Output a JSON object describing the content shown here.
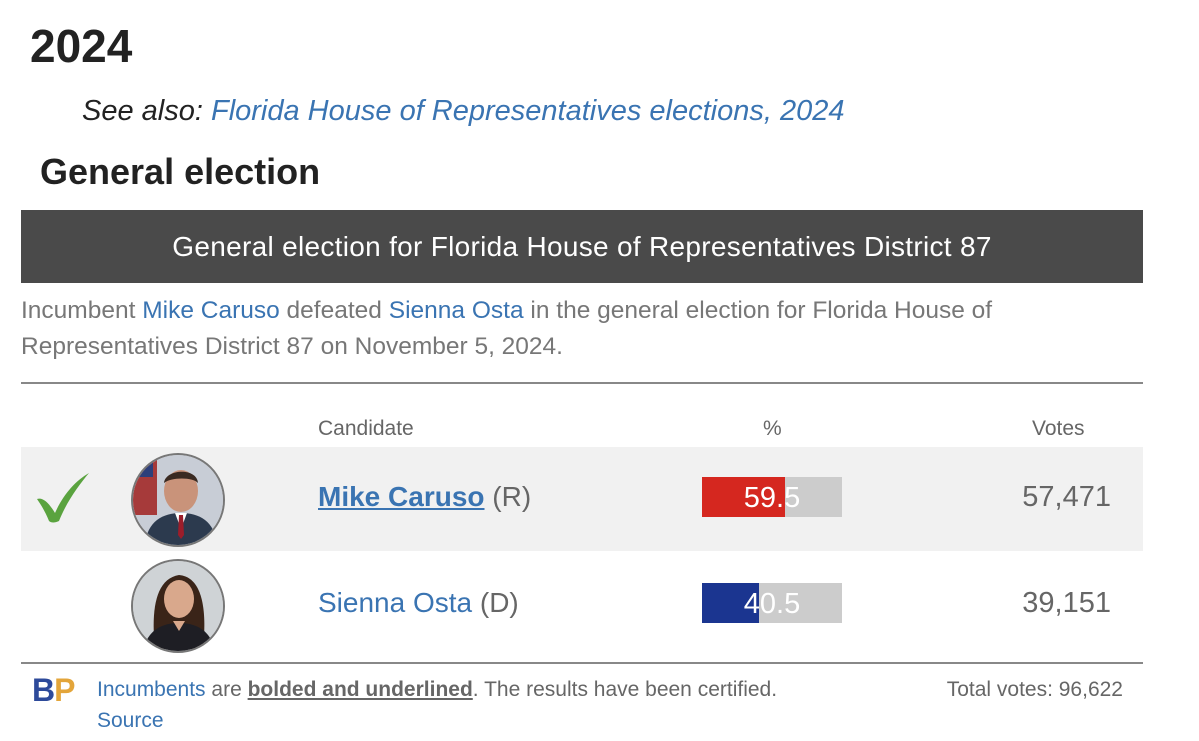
{
  "page": {
    "year_heading": "2024",
    "see_also_label": "See also:",
    "see_also_link": "Florida House of Representatives elections, 2024",
    "section_heading": "General election"
  },
  "race": {
    "title": "General election for Florida House of Representatives District 87",
    "summary": {
      "prefix": "Incumbent",
      "winner": "Mike Caruso",
      "mid": "defeated",
      "loser": "Sienna Osta",
      "suffix": "in the general election for Florida House of Representatives District 87 on November 5, 2024."
    },
    "columns": {
      "candidate": "Candidate",
      "percent": "%",
      "votes": "Votes"
    },
    "candidates": [
      {
        "name": "Mike Caruso",
        "party": "(R)",
        "percent": 59.5,
        "percent_label": "59.5",
        "votes": "57,471",
        "winner": true,
        "incumbent": true,
        "party_color": "#d5271f"
      },
      {
        "name": "Sienna Osta",
        "party": "(D)",
        "percent": 40.5,
        "percent_label": "40.5",
        "votes": "39,151",
        "winner": false,
        "incumbent": false,
        "party_color": "#1b3590"
      }
    ]
  },
  "footer": {
    "logo_b": "B",
    "logo_p": "P",
    "incumbents_link": "Incumbents",
    "are": "are",
    "bolded": "bolded and underlined",
    "rest": ". The results have been certified.",
    "source_link": "Source",
    "total_votes": "Total votes: 96,622"
  }
}
